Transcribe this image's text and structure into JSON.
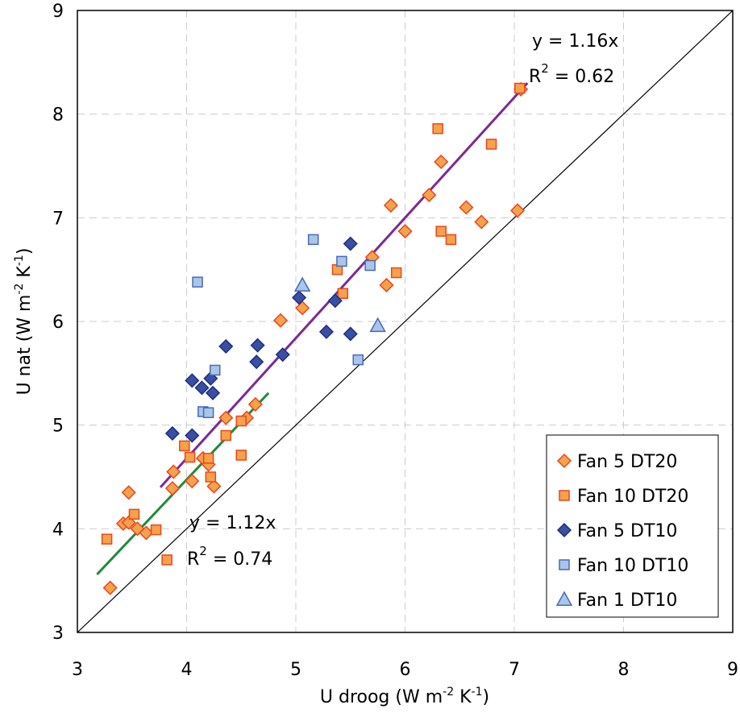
{
  "chart_data": {
    "type": "scatter",
    "title": "",
    "xlabel": {
      "main": "U droog (W  m",
      "sup1": "-2",
      "mid": " K",
      "sup2": "-1",
      "end": ")"
    },
    "ylabel": {
      "main": "U nat (W  m",
      "sup1": "-2",
      "mid": "  K",
      "sup2": "-1",
      "end": ")"
    },
    "xlim": [
      3,
      9
    ],
    "ylim": [
      3,
      9
    ],
    "xticks": [
      "3",
      "4",
      "5",
      "6",
      "7",
      "8",
      "9"
    ],
    "yticks": [
      "3",
      "4",
      "5",
      "6",
      "7",
      "8",
      "9"
    ],
    "grid": true,
    "legend_position": "bottom-right",
    "series": [
      {
        "name": "Fan 5 DT20",
        "marker": "diamond",
        "color": "#f5a24b",
        "edge": "#e8471e",
        "points": [
          [
            3.3,
            3.43
          ],
          [
            3.42,
            4.05
          ],
          [
            3.47,
            4.35
          ],
          [
            3.47,
            4.06
          ],
          [
            3.55,
            4.0
          ],
          [
            3.63,
            3.96
          ],
          [
            3.87,
            4.39
          ],
          [
            3.88,
            4.55
          ],
          [
            4.05,
            4.46
          ],
          [
            4.15,
            4.68
          ],
          [
            4.2,
            4.62
          ],
          [
            4.25,
            4.41
          ],
          [
            4.36,
            5.07
          ],
          [
            4.55,
            5.07
          ],
          [
            4.63,
            5.2
          ],
          [
            4.86,
            6.01
          ],
          [
            5.06,
            6.13
          ],
          [
            5.7,
            6.62
          ],
          [
            5.83,
            6.35
          ],
          [
            5.87,
            7.12
          ],
          [
            6.0,
            6.87
          ],
          [
            6.22,
            7.22
          ],
          [
            6.33,
            7.54
          ],
          [
            6.56,
            7.1
          ],
          [
            6.7,
            6.96
          ],
          [
            7.03,
            7.07
          ],
          [
            7.06,
            8.24
          ]
        ]
      },
      {
        "name": "Fan 10 DT20",
        "marker": "square",
        "color": "#f5a24b",
        "edge": "#e8471e",
        "points": [
          [
            3.27,
            3.9
          ],
          [
            3.52,
            4.14
          ],
          [
            3.72,
            3.99
          ],
          [
            3.82,
            3.7
          ],
          [
            3.98,
            4.8
          ],
          [
            4.03,
            4.69
          ],
          [
            4.2,
            4.68
          ],
          [
            4.22,
            4.5
          ],
          [
            4.36,
            4.9
          ],
          [
            4.5,
            5.04
          ],
          [
            4.5,
            4.71
          ],
          [
            5.38,
            6.5
          ],
          [
            5.43,
            6.27
          ],
          [
            5.92,
            6.47
          ],
          [
            6.3,
            7.86
          ],
          [
            6.33,
            6.87
          ],
          [
            6.42,
            6.79
          ],
          [
            6.79,
            7.71
          ],
          [
            7.05,
            8.25
          ]
        ]
      },
      {
        "name": "Fan 5 DT10",
        "marker": "diamond",
        "color": "#3a4ea2",
        "edge": "#1e2f80",
        "points": [
          [
            3.87,
            4.92
          ],
          [
            4.05,
            4.9
          ],
          [
            4.05,
            5.43
          ],
          [
            4.14,
            5.36
          ],
          [
            4.22,
            5.45
          ],
          [
            4.24,
            5.31
          ],
          [
            4.36,
            5.76
          ],
          [
            4.64,
            5.61
          ],
          [
            4.65,
            5.77
          ],
          [
            4.88,
            5.68
          ],
          [
            5.03,
            6.23
          ],
          [
            5.28,
            5.9
          ],
          [
            5.36,
            6.2
          ],
          [
            5.5,
            6.75
          ],
          [
            5.5,
            5.88
          ]
        ]
      },
      {
        "name": "Fan 10 DT10",
        "marker": "square",
        "color": "#a9c6ea",
        "edge": "#4a69b5",
        "points": [
          [
            4.1,
            6.38
          ],
          [
            4.15,
            5.13
          ],
          [
            4.2,
            5.12
          ],
          [
            4.26,
            5.53
          ],
          [
            5.16,
            6.79
          ],
          [
            5.42,
            6.58
          ],
          [
            5.57,
            5.63
          ],
          [
            5.68,
            6.54
          ]
        ]
      },
      {
        "name": "Fan 1 DT10",
        "marker": "triangle",
        "color": "#a9c6ea",
        "edge": "#4a69b5",
        "points": [
          [
            5.06,
            6.35
          ],
          [
            5.75,
            5.96
          ]
        ]
      }
    ],
    "lines": [
      {
        "color": "#7b2a96",
        "from": [
          3.76,
          4.4
        ],
        "to": [
          7.12,
          8.3
        ]
      },
      {
        "color": "#1f8a3a",
        "from": [
          3.18,
          3.56
        ],
        "to": [
          4.75,
          5.31
        ]
      },
      {
        "color": "#000000",
        "from": [
          3,
          3
        ],
        "to": [
          9,
          9
        ]
      }
    ],
    "annotations": [
      {
        "eq": "y = 1.16x",
        "r2_prefix": "R",
        "r2_sup": "2",
        "r2_val": " = 0.62"
      },
      {
        "eq": "y = 1.12x",
        "r2_prefix": "R",
        "r2_sup": "2",
        "r2_val": " = 0.74"
      }
    ]
  }
}
